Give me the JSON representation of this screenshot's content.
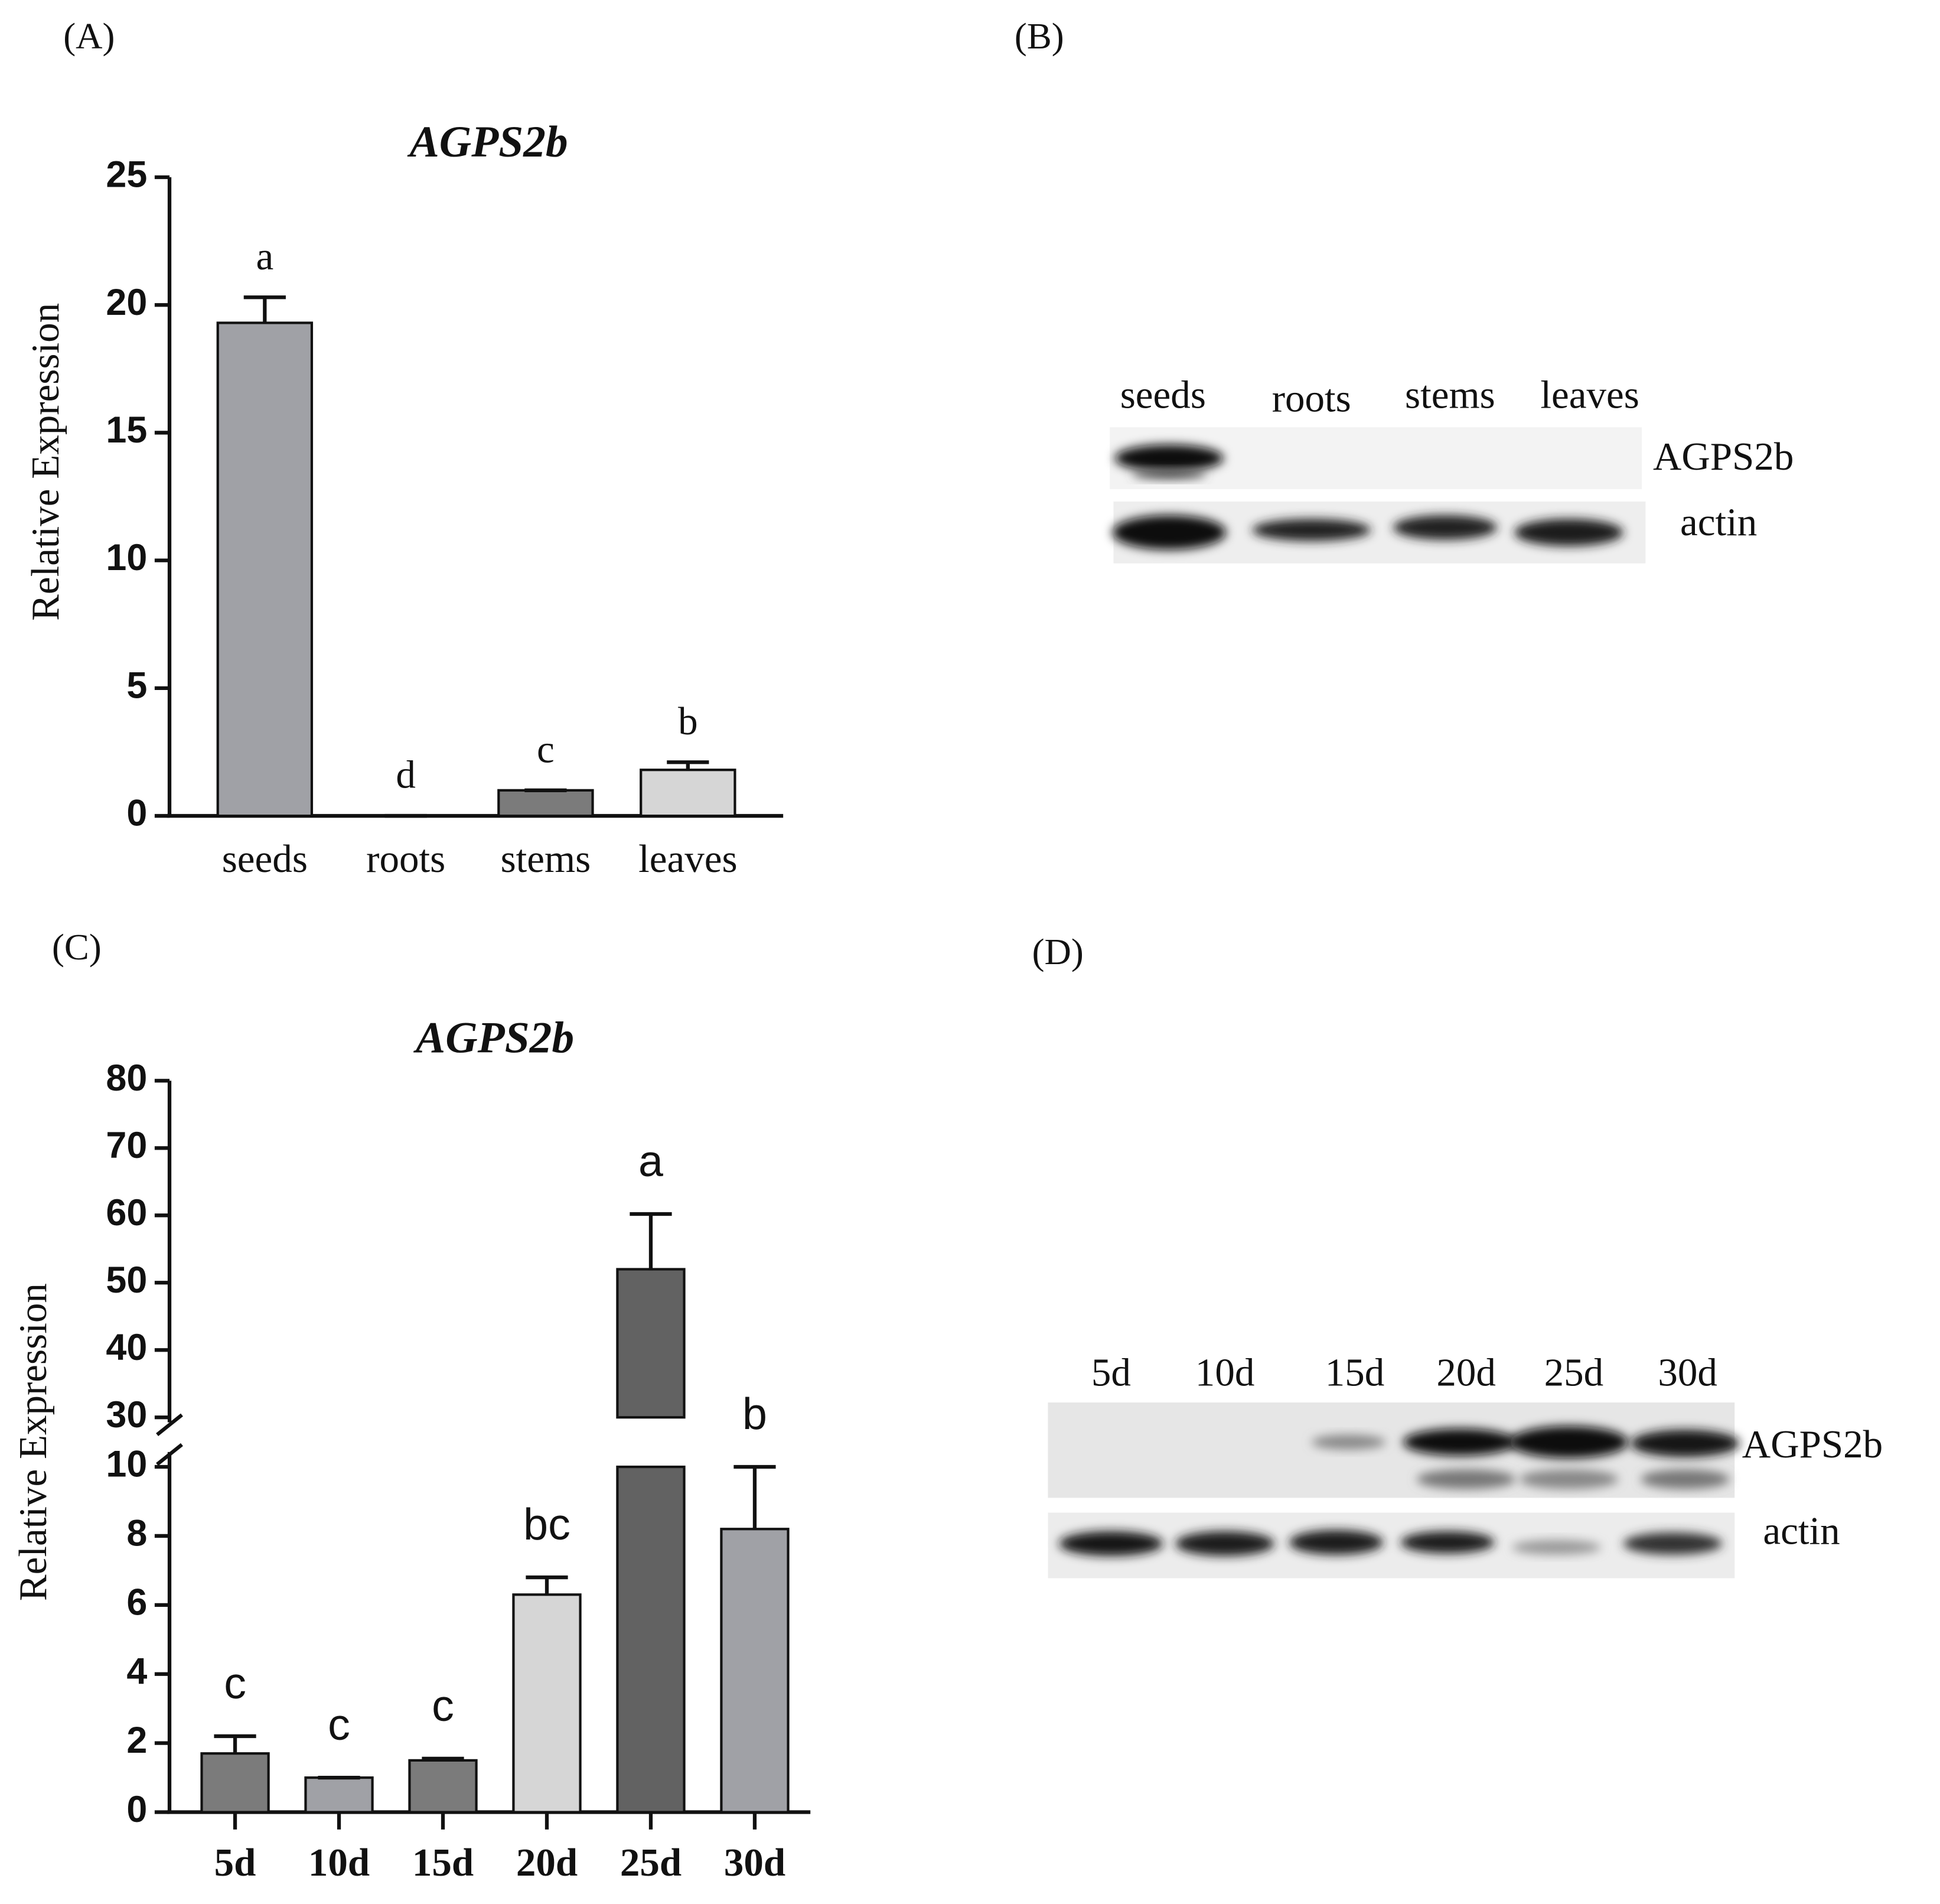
{
  "panel_labels": [
    "(A)",
    "(B)",
    "(C)",
    "(D)"
  ],
  "chart_data": [
    {
      "type": "bar",
      "title": "AGPS2b",
      "ylabel": "Relative Expression",
      "categories": [
        "seeds",
        "roots",
        "stems",
        "leaves"
      ],
      "values": [
        19.3,
        0,
        1,
        1.8
      ],
      "errors": [
        1.0,
        0,
        0,
        0.3
      ],
      "annotations": [
        "a",
        "d",
        "c",
        "b"
      ],
      "colors": [
        "#a0a1a6",
        "#a0a1a6",
        "#7b7b7b",
        "#d6d6d6"
      ],
      "ylim": [
        0,
        25
      ],
      "yticks": [
        0,
        5,
        10,
        15,
        20,
        25
      ]
    },
    {
      "type": "bar",
      "title": "AGPS2b",
      "ylabel": "Relative Expression",
      "categories": [
        "5d",
        "10d",
        "15d",
        "20d",
        "25d",
        "30d"
      ],
      "values": [
        1.7,
        1.0,
        1.5,
        6.3,
        52,
        8.2
      ],
      "errors": [
        0.5,
        0,
        0.05,
        0.5,
        8.2,
        1.8
      ],
      "annotations": [
        "c",
        "c",
        "c",
        "bc",
        "a",
        "b"
      ],
      "colors": [
        "#7b7b7b",
        "#a0a1a6",
        "#7b7b7b",
        "#d6d6d6",
        "#626262",
        "#a0a1a6"
      ],
      "ylim": [
        0,
        80
      ],
      "ybreak": [
        10,
        30
      ],
      "yticks": [
        0,
        2,
        4,
        6,
        8,
        10,
        30,
        40,
        50,
        60,
        70,
        80
      ]
    }
  ],
  "blots": [
    {
      "lanes": [
        "seeds",
        "roots",
        "stems",
        "leaves"
      ],
      "bands": [
        "AGPS2b",
        "actin"
      ]
    },
    {
      "lanes": [
        "5d",
        "10d",
        "15d",
        "20d",
        "25d",
        "30d"
      ],
      "bands": [
        "AGPS2b",
        "actin"
      ]
    }
  ]
}
